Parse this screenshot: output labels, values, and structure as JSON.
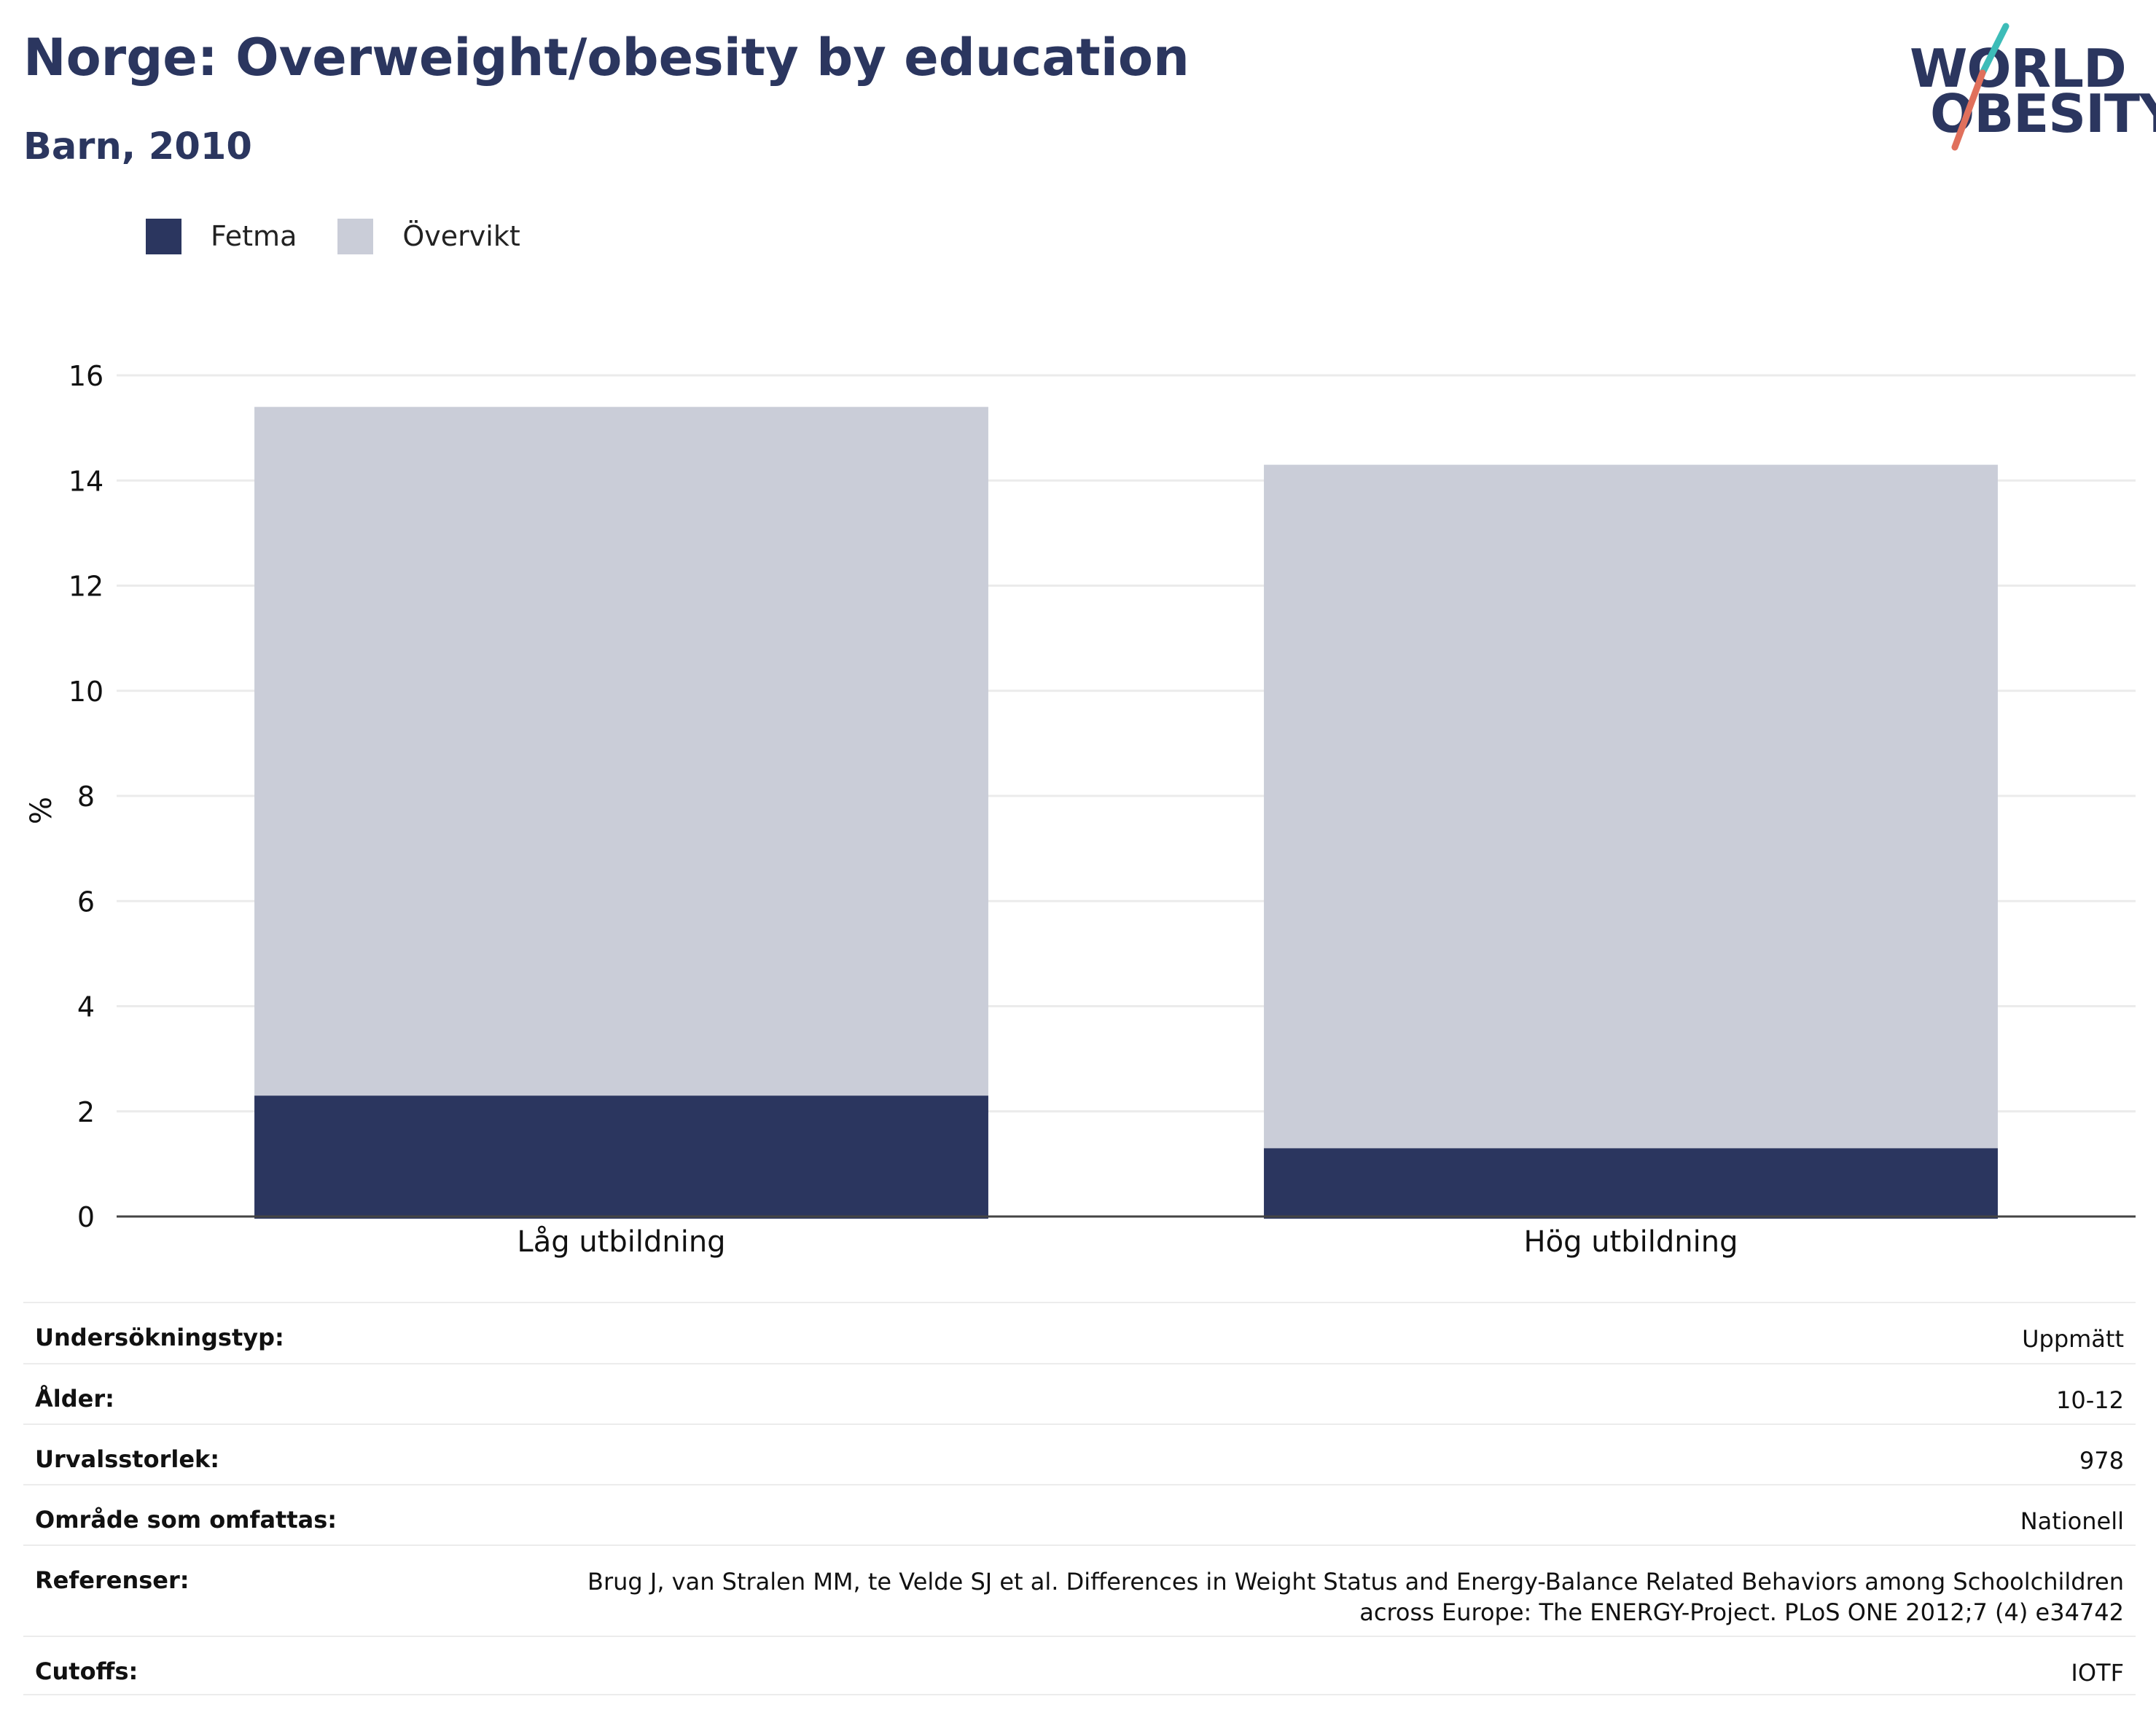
{
  "header": {
    "title": "Norge: Overweight/obesity by education",
    "subtitle": "Barn, 2010"
  },
  "logo": {
    "line1": "WORLD",
    "line2": "OBESITY",
    "accent_colors": [
      "#3dbcb8",
      "#e0705c"
    ]
  },
  "legend": [
    {
      "label": "Fetma",
      "color": "#2b365f"
    },
    {
      "label": "Övervikt",
      "color": "#cacdd8"
    }
  ],
  "chart_data": {
    "type": "bar",
    "stacked": true,
    "categories": [
      "Låg utbildning",
      "Hög utbildning"
    ],
    "series": [
      {
        "name": "Fetma",
        "values": [
          2.3,
          1.3
        ],
        "color": "#2b365f"
      },
      {
        "name": "Övervikt",
        "values": [
          13.1,
          13.0
        ],
        "color": "#cacdd8"
      }
    ],
    "ylabel": "%",
    "ylim": [
      0,
      16
    ],
    "yticks": [
      0,
      2,
      4,
      6,
      8,
      10,
      12,
      14,
      16
    ],
    "grid": true,
    "legend_position": "top-left"
  },
  "info_table": [
    {
      "key": "Undersökningstyp:",
      "value": "Uppmätt"
    },
    {
      "key": "Ålder:",
      "value": "10-12"
    },
    {
      "key": "Urvalsstorlek:",
      "value": "978"
    },
    {
      "key": "Område som omfattas:",
      "value": "Nationell"
    },
    {
      "key": "Referenser:",
      "value": "Brug J, van Stralen MM, te Velde SJ et al. Differences in Weight Status and Energy-Balance Related Behaviors among Schoolchildren across Europe: The ENERGY-Project. PLoS ONE 2012;7 (4) e34742"
    },
    {
      "key": "Cutoffs:",
      "value": "IOTF"
    }
  ]
}
